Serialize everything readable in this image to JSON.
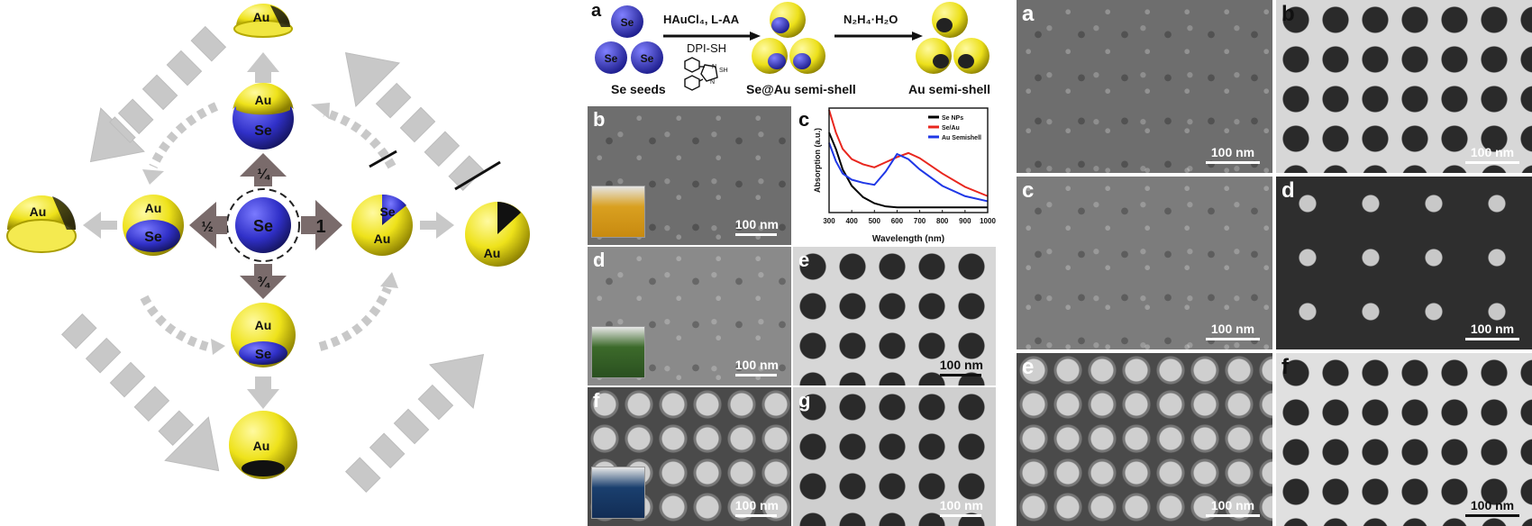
{
  "scheme": {
    "labels": {
      "au": "Au",
      "se": "Se",
      "frac_quarter": "¼",
      "frac_half": "½",
      "frac_three_quarter": "¾",
      "frac_one": "1"
    }
  },
  "middle": {
    "panel_letters": {
      "a": "a",
      "b": "b",
      "c": "c",
      "d": "d",
      "e": "e",
      "f": "f",
      "g": "g"
    },
    "reaction": {
      "seed_se": "Se",
      "reagents_top": "HAuCl₄, L-AA",
      "reagents_bottom": "DPI-SH",
      "sh_label": "SH",
      "nh_label": "N",
      "hydrazine": "N₂H₄·H₂O",
      "stage1": "Se seeds",
      "stage2": "Se@Au semi-shell",
      "stage3": "Au semi-shell"
    },
    "scalebar": "100 nm"
  },
  "chart_data": {
    "type": "line",
    "xlabel": "Wavelength (nm)",
    "ylabel": "Absorption (a.u.)",
    "xlim": [
      300,
      1000
    ],
    "xticks": [
      "300",
      "400",
      "500",
      "600",
      "700",
      "800",
      "900",
      "1000"
    ],
    "legend_position": "top-right",
    "series": [
      {
        "name": "Se NPs",
        "color": "#000000",
        "x": [
          300,
          330,
          360,
          400,
          450,
          500,
          550,
          600,
          700,
          800,
          900,
          1000
        ],
        "y": [
          0.78,
          0.62,
          0.42,
          0.26,
          0.15,
          0.09,
          0.06,
          0.05,
          0.05,
          0.05,
          0.05,
          0.05
        ]
      },
      {
        "name": "Se/Au",
        "color": "#e8261e",
        "x": [
          300,
          330,
          360,
          400,
          450,
          500,
          550,
          600,
          650,
          700,
          800,
          900,
          1000
        ],
        "y": [
          1.0,
          0.78,
          0.62,
          0.52,
          0.47,
          0.44,
          0.49,
          0.54,
          0.58,
          0.53,
          0.38,
          0.25,
          0.16
        ]
      },
      {
        "name": "Au Semishell",
        "color": "#1f37e6",
        "x": [
          300,
          330,
          360,
          400,
          450,
          500,
          550,
          600,
          650,
          700,
          800,
          900,
          1000
        ],
        "y": [
          0.68,
          0.5,
          0.38,
          0.32,
          0.29,
          0.27,
          0.4,
          0.57,
          0.52,
          0.42,
          0.26,
          0.16,
          0.11
        ]
      }
    ]
  },
  "right": {
    "panel_letters": {
      "a": "a",
      "b": "b",
      "c": "c",
      "d": "d",
      "e": "e",
      "f": "f"
    },
    "scalebar": "100 nm"
  }
}
